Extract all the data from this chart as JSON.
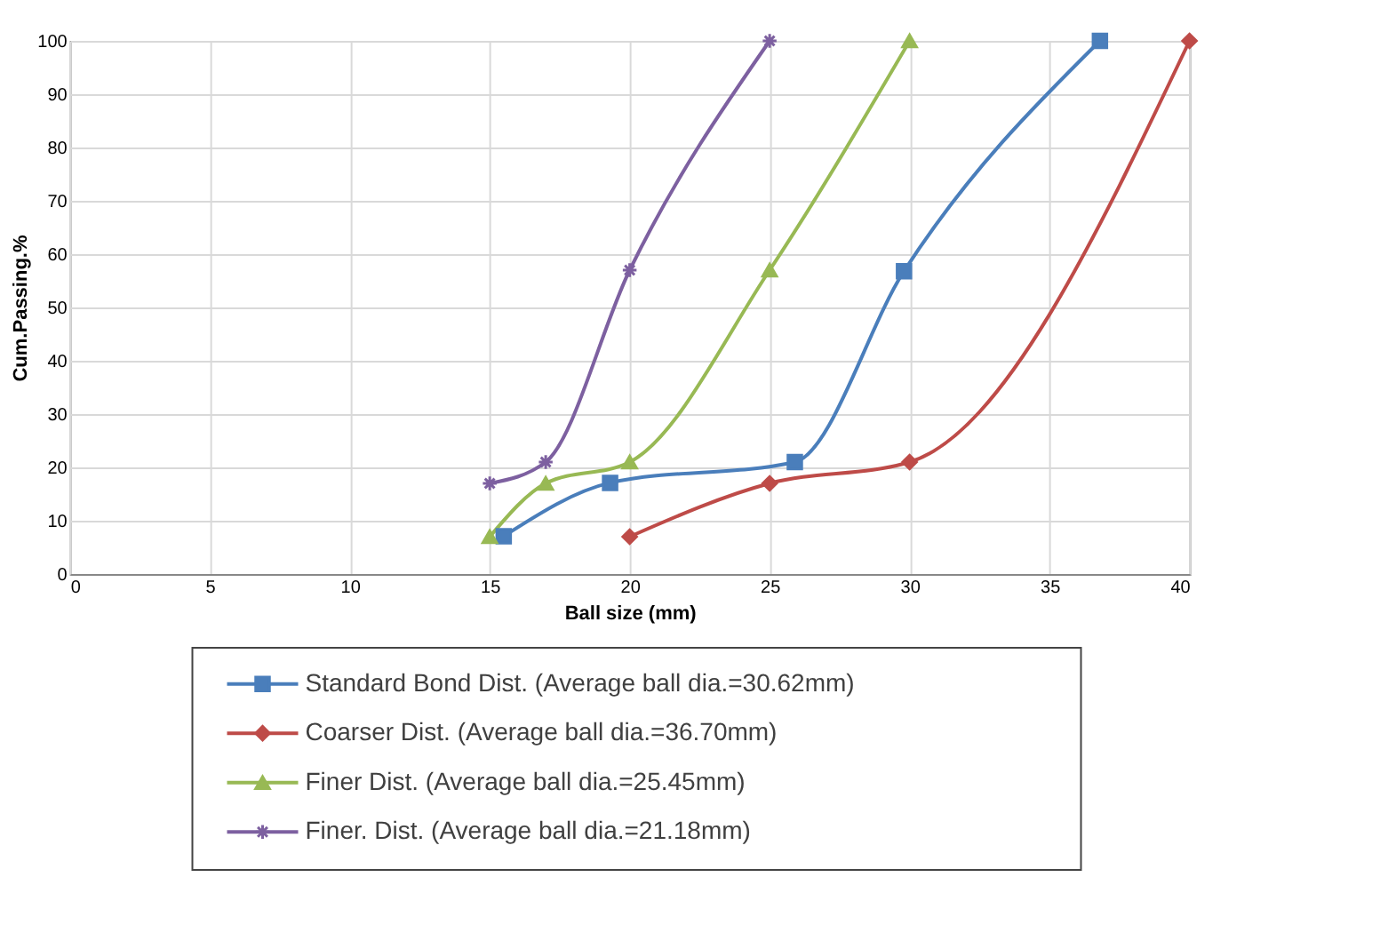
{
  "chart_data": {
    "type": "line",
    "xlabel": "Ball size (mm)",
    "ylabel": "Cum.Passing.%",
    "xlim": [
      0,
      40
    ],
    "xticks": [
      0,
      5,
      10,
      15,
      20,
      25,
      30,
      35,
      40
    ],
    "ylim": [
      0,
      100
    ],
    "yticks": [
      0,
      10,
      20,
      30,
      40,
      50,
      60,
      70,
      80,
      90,
      100
    ],
    "grid": true,
    "legend": "bottom",
    "line_style": "solid",
    "series": [
      {
        "name": "Standard Bond Dist. (Average ball dia.=30.62mm)",
        "color": "#4a7ebb",
        "marker": "square",
        "x": [
          15.5,
          19.3,
          25.9,
          29.8,
          36.8
        ],
        "values": [
          7.1,
          17.1,
          21,
          56.8,
          100
        ]
      },
      {
        "name": "Coarser Dist. (Average ball dia.=36.70mm)",
        "color": "#be4b48",
        "marker": "diamond",
        "x": [
          20,
          25,
          30,
          40
        ],
        "values": [
          7,
          17,
          21,
          100
        ]
      },
      {
        "name": "Finer Dist. (Average ball dia.=25.45mm)",
        "color": "#98b954",
        "marker": "triangle",
        "x": [
          15,
          17,
          20,
          25,
          30
        ],
        "values": [
          7,
          17,
          21,
          57,
          100
        ]
      },
      {
        "name": "Finer. Dist. (Average ball dia.=21.18mm)",
        "color": "#7d60a0",
        "marker": "cross",
        "x": [
          15,
          17,
          20,
          25
        ],
        "values": [
          17,
          21,
          57,
          100
        ]
      }
    ]
  }
}
